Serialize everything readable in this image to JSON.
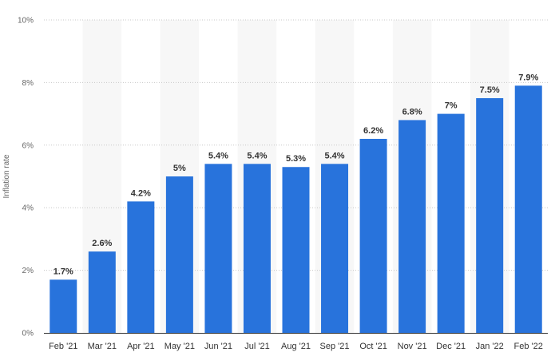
{
  "chart_data": {
    "type": "bar",
    "title": "",
    "xlabel": "",
    "ylabel": "Inflation rate",
    "categories": [
      "Feb '21",
      "Mar '21",
      "Apr '21",
      "May '21",
      "Jun '21",
      "Jul '21",
      "Aug '21",
      "Sep '21",
      "Oct '21",
      "Nov '21",
      "Dec '21",
      "Jan '22",
      "Feb '22"
    ],
    "values": [
      1.7,
      2.6,
      4.2,
      5.0,
      5.4,
      5.4,
      5.3,
      5.4,
      6.2,
      6.8,
      7.0,
      7.5,
      7.9
    ],
    "data_labels": [
      "1.7%",
      "2.6%",
      "4.2%",
      "5%",
      "5.4%",
      "5.4%",
      "5.3%",
      "5.4%",
      "6.2%",
      "6.8%",
      "7%",
      "7.5%",
      "7.9%"
    ],
    "ylim": [
      0,
      10
    ],
    "y_ticks": [
      0,
      2,
      4,
      6,
      8,
      10
    ],
    "y_tick_labels": [
      "0%",
      "2%",
      "4%",
      "6%",
      "8%",
      "10%"
    ],
    "grid": true,
    "grid_style": "dotted horizontal",
    "alternating_column_bands": true,
    "legend": "none",
    "colors": {
      "bar": "#2873DC",
      "band": "#F7F7F7",
      "grid": "#C8C8C8",
      "axis": "#333333"
    }
  }
}
